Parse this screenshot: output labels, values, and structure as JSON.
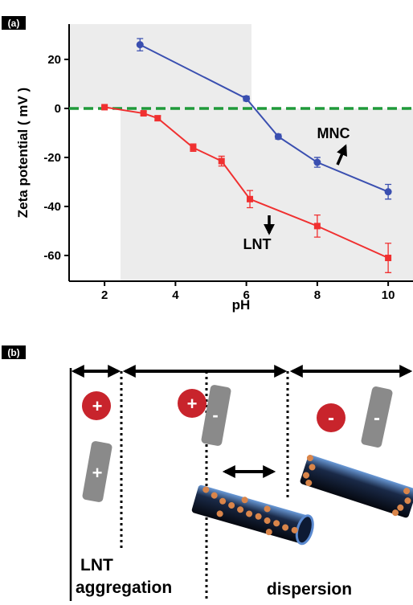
{
  "chart_data": {
    "type": "line",
    "panel_label": "(a)",
    "x_label": "pH",
    "y_label": "Zeta potential ( mV )",
    "xlim": [
      1,
      10.7
    ],
    "ylim": [
      -70.5,
      34.4
    ],
    "xticks": [
      2,
      4,
      6,
      8,
      10
    ],
    "yticks": [
      20,
      0,
      -20,
      -40,
      -60
    ],
    "zero_line": {
      "value": 0,
      "color": "#1f9a3a"
    },
    "series": [
      {
        "name": "MNC",
        "color": "#3a4fb0",
        "marker": "circle",
        "x": [
          3,
          6,
          6.9,
          8,
          10
        ],
        "values": [
          26,
          4,
          -11.5,
          -22,
          -34
        ],
        "errors": [
          2.5,
          1,
          1,
          2,
          3
        ]
      },
      {
        "name": "LNT",
        "color": "#f03030",
        "marker": "square",
        "x": [
          2,
          3.1,
          3.5,
          4.5,
          5.3,
          6.1,
          8,
          10
        ],
        "values": [
          0.5,
          -2,
          -4,
          -16,
          -21.5,
          -37,
          -48,
          -61
        ],
        "errors": [
          0.5,
          0.8,
          1,
          1.5,
          2,
          3.5,
          4.5,
          6
        ]
      }
    ]
  },
  "diagram": {
    "panel_label": "(b)",
    "charges": [
      "+",
      "+",
      "+",
      "-",
      "-",
      "-"
    ],
    "labels": [
      "LNT",
      "aggregation",
      "dispersion"
    ]
  }
}
